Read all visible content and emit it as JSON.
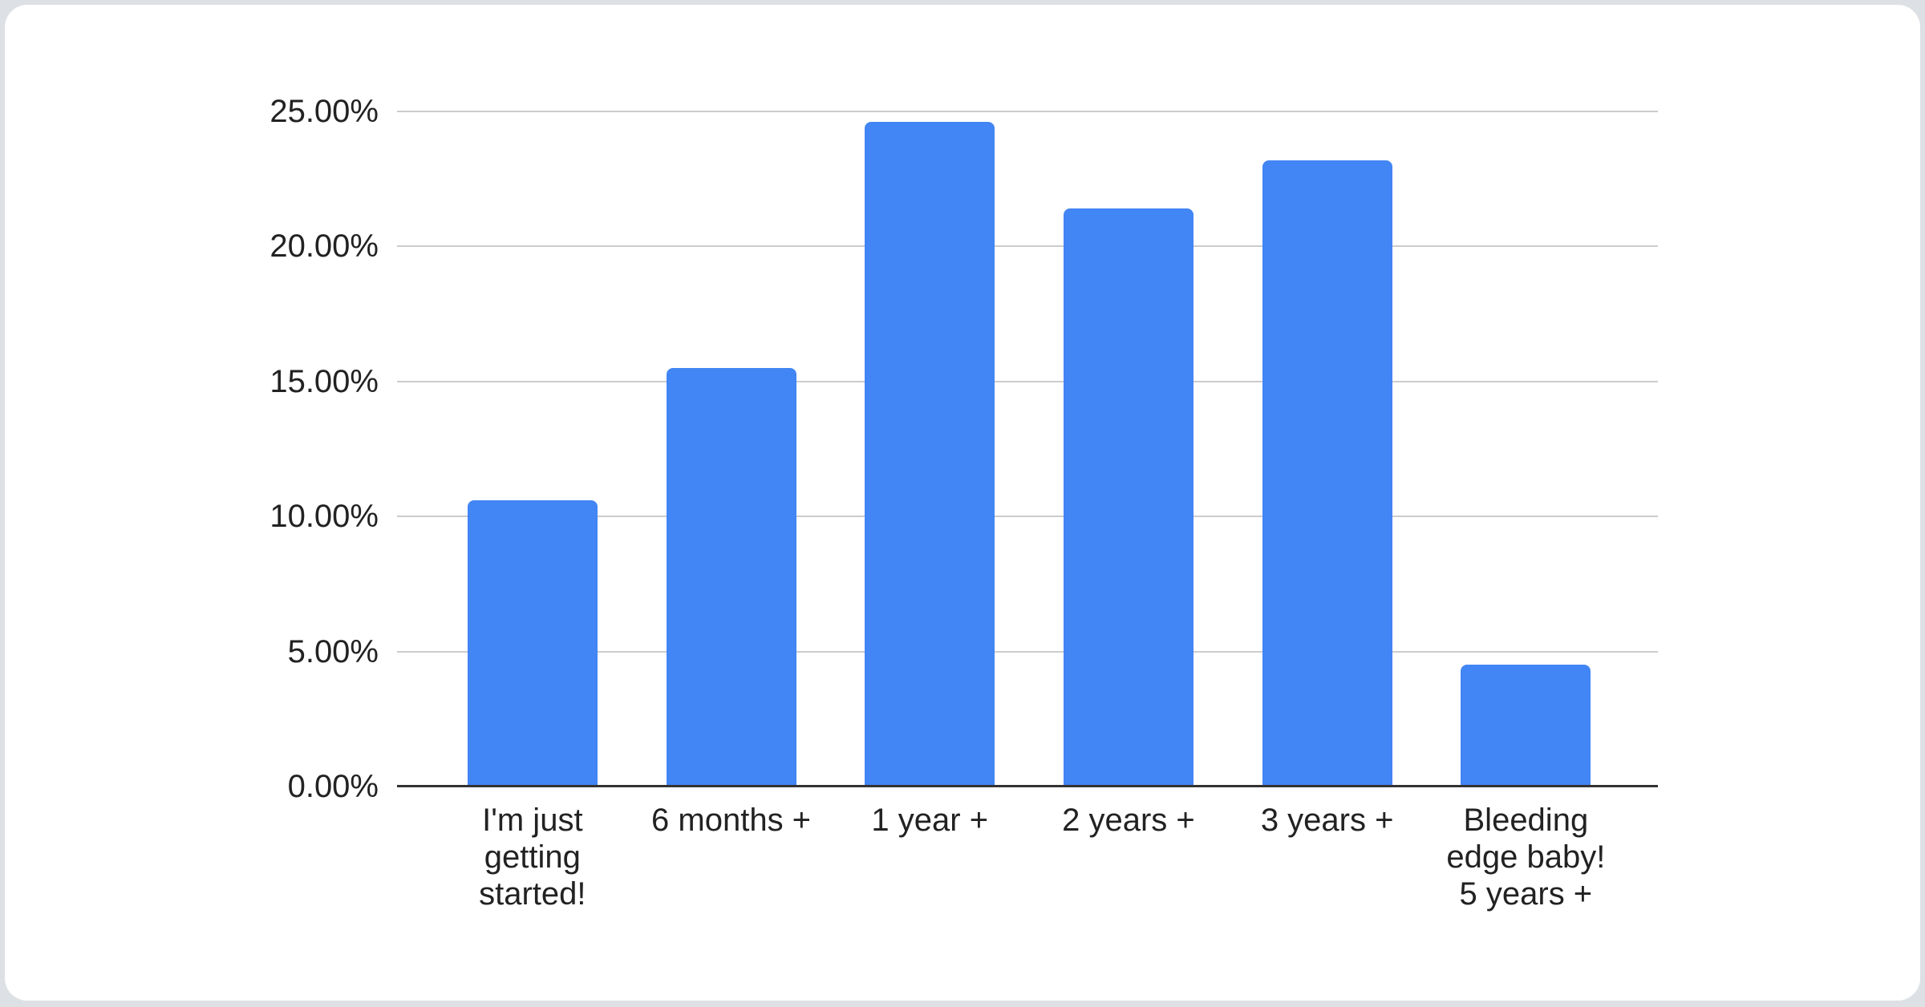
{
  "page": {
    "background_color": "#dde0e4",
    "card_background_color": "#ffffff"
  },
  "chart_data": {
    "type": "bar",
    "title": "",
    "categories": [
      "I'm just getting started!",
      "6 months +",
      "1 year +",
      "2 years +",
      "3 years +",
      "Bleeding edge baby! 5 years +"
    ],
    "values": [
      10.6,
      15.5,
      24.6,
      21.4,
      23.2,
      4.5
    ],
    "value_unit": "percent",
    "ytick_labels": [
      "0.00%",
      "5.00%",
      "10.00%",
      "15.00%",
      "20.00%",
      "25.00%"
    ],
    "ylim": [
      0,
      25
    ],
    "ytick_step": 5,
    "grid": true,
    "legend": "none",
    "xlabel": "",
    "ylabel": "",
    "bar_color": "#4285f4",
    "gridline_color": "#cccccc",
    "axis_line_color": "#333333",
    "label_color": "#222222"
  }
}
